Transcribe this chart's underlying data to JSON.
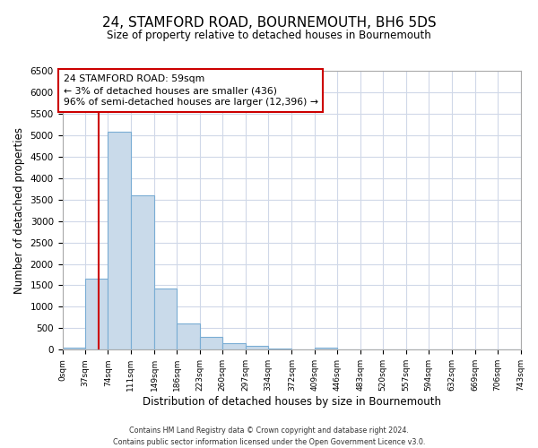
{
  "title": "24, STAMFORD ROAD, BOURNEMOUTH, BH6 5DS",
  "subtitle": "Size of property relative to detached houses in Bournemouth",
  "xlabel": "Distribution of detached houses by size in Bournemouth",
  "ylabel": "Number of detached properties",
  "bar_edges": [
    0,
    37,
    74,
    111,
    149,
    186,
    223,
    260,
    297,
    334,
    372,
    409,
    446,
    483,
    520,
    557,
    594,
    632,
    669,
    706,
    743
  ],
  "bar_heights": [
    50,
    1650,
    5070,
    3600,
    1420,
    610,
    300,
    150,
    100,
    30,
    0,
    40,
    0,
    0,
    0,
    0,
    0,
    0,
    0,
    0
  ],
  "bar_color": "#c9daea",
  "bar_edge_color": "#7aadd4",
  "property_line_x": 59,
  "property_line_color": "#cc0000",
  "annotation_title": "24 STAMFORD ROAD: 59sqm",
  "annotation_line1": "← 3% of detached houses are smaller (436)",
  "annotation_line2": "96% of semi-detached houses are larger (12,396) →",
  "annotation_box_color": "#ffffff",
  "annotation_box_edge": "#cc0000",
  "ylim": [
    0,
    6500
  ],
  "yticks": [
    0,
    500,
    1000,
    1500,
    2000,
    2500,
    3000,
    3500,
    4000,
    4500,
    5000,
    5500,
    6000,
    6500
  ],
  "xtick_labels": [
    "0sqm",
    "37sqm",
    "74sqm",
    "111sqm",
    "149sqm",
    "186sqm",
    "223sqm",
    "260sqm",
    "297sqm",
    "334sqm",
    "372sqm",
    "409sqm",
    "446sqm",
    "483sqm",
    "520sqm",
    "557sqm",
    "594sqm",
    "632sqm",
    "669sqm",
    "706sqm",
    "743sqm"
  ],
  "footer_line1": "Contains HM Land Registry data © Crown copyright and database right 2024.",
  "footer_line2": "Contains public sector information licensed under the Open Government Licence v3.0.",
  "bg_color": "#ffffff",
  "grid_color": "#d0d8e8"
}
